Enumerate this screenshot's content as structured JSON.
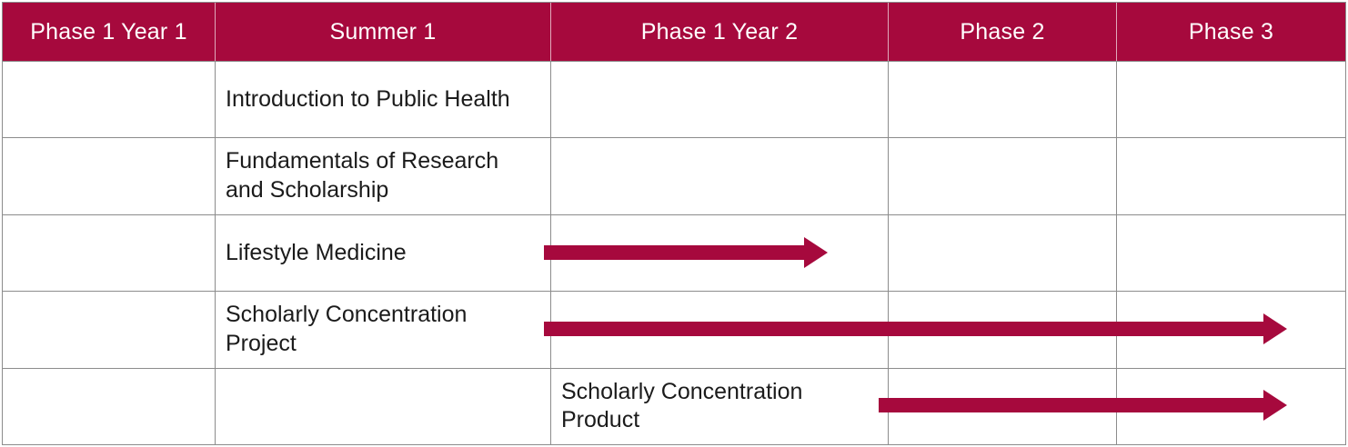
{
  "table": {
    "columns": [
      {
        "label": "Phase 1 Year 1"
      },
      {
        "label": "Summer 1"
      },
      {
        "label": "Phase 1 Year 2"
      },
      {
        "label": "Phase 2"
      },
      {
        "label": "Phase 3"
      }
    ],
    "rows": [
      {
        "activity": "Introduction to Public Health",
        "activity_column": "Summer 1",
        "arrow": null
      },
      {
        "activity": "Fundamentals of Research\nand Scholarship",
        "activity_column": "Summer 1",
        "arrow": null
      },
      {
        "activity": "Lifestyle Medicine",
        "activity_column": "Summer 1",
        "arrow": {
          "start_column": "Phase 1 Year 2",
          "end_column": "Phase 1 Year 2"
        }
      },
      {
        "activity": "Scholarly Concentration\nProject",
        "activity_column": "Summer 1",
        "arrow": {
          "start_column": "Phase 1 Year 2",
          "end_column": "Phase 3"
        }
      },
      {
        "activity": "Scholarly Concentration\nProduct",
        "activity_column": "Phase 1 Year 2",
        "arrow": {
          "start_column": "Phase 2",
          "end_column": "Phase 3"
        }
      }
    ]
  },
  "theme": {
    "accent_red": "#A6093D",
    "grid_line": "#8C8C8C",
    "header_text": "#FFFFFF",
    "body_text": "#1B1B1B",
    "background": "#FFFFFF"
  }
}
